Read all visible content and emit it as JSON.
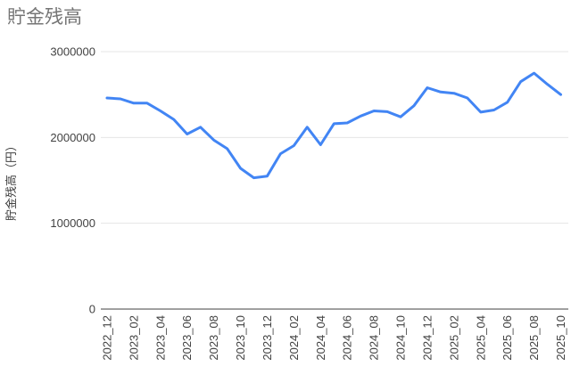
{
  "header": {
    "title": "貯金残高",
    "title_color": "#757575"
  },
  "chart_data": {
    "type": "line",
    "title": "貯金残高",
    "xlabel": "",
    "ylabel": "貯金残高（円）",
    "legend_position": "none",
    "grid": true,
    "ylim": [
      0,
      3000000
    ],
    "yticks": [
      0,
      1000000,
      2000000,
      3000000
    ],
    "ytick_labels": [
      "0",
      "1000000",
      "2000000",
      "3000000"
    ],
    "x_tick_step": 2,
    "categories": [
      "2022_12",
      "2023_01",
      "2023_02",
      "2023_03",
      "2023_04",
      "2023_05",
      "2023_06",
      "2023_07",
      "2023_08",
      "2023_09",
      "2023_10",
      "2023_11",
      "2023_12",
      "2024_01",
      "2024_02",
      "2024_03",
      "2024_04",
      "2024_05",
      "2024_06",
      "2024_07",
      "2024_08",
      "2024_09",
      "2024_10",
      "2024_11",
      "2024_12",
      "2025_01",
      "2025_02",
      "2025_03",
      "2025_04",
      "2025_05",
      "2025_06",
      "2025_07",
      "2025_08",
      "2025_09",
      "2025_10"
    ],
    "series": [
      {
        "name": "貯金残高",
        "color": "#4285f4",
        "values": [
          2460000,
          2450000,
          2400000,
          2400000,
          2310000,
          2210000,
          2040000,
          2120000,
          1970000,
          1870000,
          1640000,
          1530000,
          1550000,
          1810000,
          1905000,
          2120000,
          1915000,
          2160000,
          2170000,
          2250000,
          2310000,
          2300000,
          2240000,
          2370000,
          2580000,
          2530000,
          2515000,
          2460000,
          2295000,
          2320000,
          2410000,
          2650000,
          2750000,
          2620000,
          2500000
        ]
      }
    ],
    "colors": {
      "gridline": "#e6e6e6",
      "baseline": "#424242",
      "tick_label": "#424242",
      "axis_title": "#424242"
    }
  }
}
